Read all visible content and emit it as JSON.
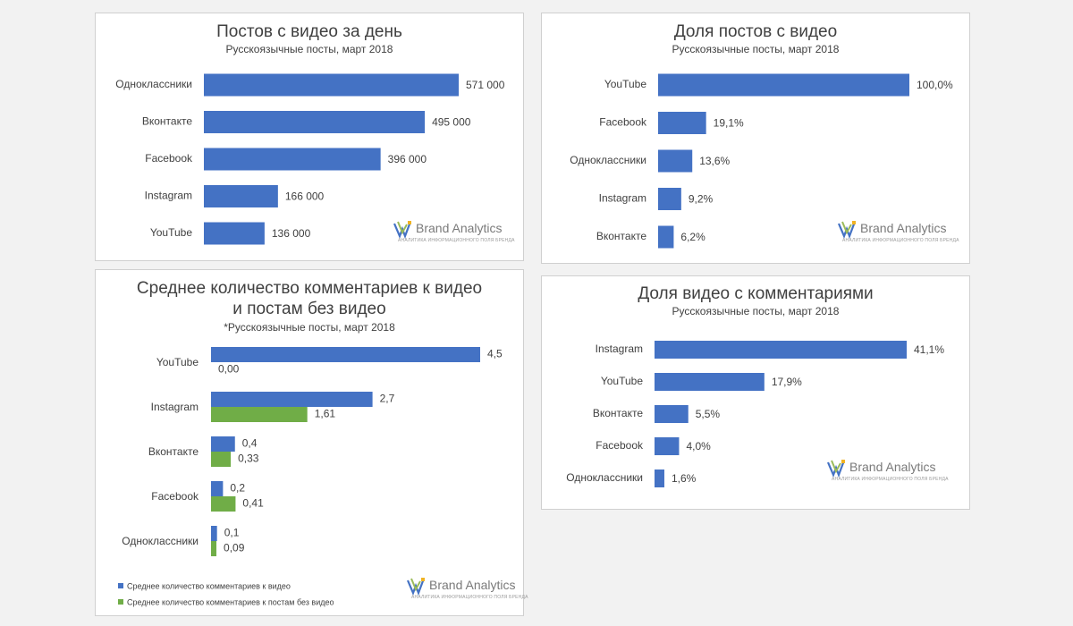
{
  "colors": {
    "blue": "#4472c4",
    "green": "#70ad47"
  },
  "brand": {
    "name": "Brand Analytics",
    "tagline": "АНАЛИТИКА ИНФОРМАЦИОННОГО ПОЛЯ БРЕНДА"
  },
  "chart_data": [
    {
      "type": "bar",
      "title": "Постов с видео за день",
      "subtitle": "Русскоязычные посты, март 2018",
      "categories": [
        "Одноклассники",
        "Вконтакте",
        "Facebook",
        "Instagram",
        "YouTube"
      ],
      "values": [
        571000,
        495000,
        396000,
        166000,
        136000
      ],
      "value_labels": [
        "571 000",
        "495 000",
        "396 000",
        "166 000",
        "136 000"
      ],
      "xlim": [
        0,
        571000
      ]
    },
    {
      "type": "bar",
      "title": "Доля постов с видео",
      "subtitle": "Русскоязычные посты, март 2018",
      "categories": [
        "YouTube",
        "Facebook",
        "Одноклассники",
        "Instagram",
        "Вконтакте"
      ],
      "values": [
        100.0,
        19.1,
        13.6,
        9.2,
        6.2
      ],
      "value_labels": [
        "100,0%",
        "19,1%",
        "13,6%",
        "9,2%",
        "6,2%"
      ],
      "xlim": [
        0,
        100
      ]
    },
    {
      "type": "bar",
      "title_lines": [
        "Среднее количество комментариев к видео",
        "и постам без видео"
      ],
      "subtitle": "*Русскоязычные посты, март 2018",
      "categories": [
        "YouTube",
        "Instagram",
        "Вконтакте",
        "Facebook",
        "Одноклассники"
      ],
      "series": [
        {
          "name": "Среднее количество комментариев к видео",
          "values": [
            4.5,
            2.7,
            0.4,
            0.2,
            0.1
          ],
          "value_labels": [
            "4,5",
            "2,7",
            "0,4",
            "0,2",
            "0,1"
          ]
        },
        {
          "name": "Среднее количество комментариев к постам без видео",
          "values": [
            0.0,
            1.61,
            0.33,
            0.41,
            0.09
          ],
          "value_labels": [
            "0,00",
            "1,61",
            "0,33",
            "0,41",
            "0,09"
          ]
        }
      ],
      "xlim": [
        0,
        4.5
      ],
      "legend": "bottom-left"
    },
    {
      "type": "bar",
      "title": "Доля видео с комментариями",
      "subtitle": "Русскоязычные посты, март 2018",
      "categories": [
        "Instagram",
        "YouTube",
        "Вконтакте",
        "Facebook",
        "Одноклассники"
      ],
      "values": [
        41.1,
        17.9,
        5.5,
        4.0,
        1.6
      ],
      "value_labels": [
        "41,1%",
        "17,9%",
        "5,5%",
        "4,0%",
        "1,6%"
      ],
      "xlim": [
        0,
        41.1
      ]
    }
  ]
}
